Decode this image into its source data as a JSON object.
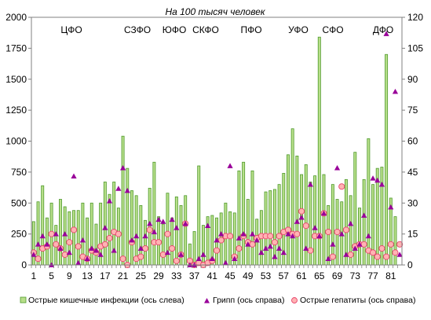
{
  "chart_data": {
    "type": "bar",
    "title": "На 100 тысяч человек",
    "x": [
      1,
      2,
      3,
      4,
      5,
      6,
      7,
      8,
      9,
      10,
      11,
      12,
      13,
      14,
      15,
      16,
      17,
      18,
      19,
      20,
      21,
      22,
      23,
      24,
      25,
      26,
      27,
      28,
      29,
      30,
      31,
      32,
      33,
      34,
      35,
      36,
      37,
      38,
      39,
      40,
      41,
      42,
      43,
      44,
      45,
      46,
      47,
      48,
      49,
      50,
      51,
      52,
      53,
      54,
      55,
      56,
      57,
      58,
      59,
      60,
      61,
      62,
      63,
      64,
      65,
      66,
      67,
      68,
      69,
      70,
      71,
      72,
      73,
      74,
      75,
      76,
      77,
      78,
      79,
      80,
      81,
      82,
      83
    ],
    "x_tick_labels": [
      "1",
      "5",
      "9",
      "13",
      "17",
      "21",
      "25",
      "29",
      "33",
      "37",
      "41",
      "45",
      "49",
      "53",
      "57",
      "61",
      "65",
      "69",
      "73",
      "77",
      "81"
    ],
    "region_labels": [
      "ЦФО",
      "СЗФО",
      "ЮФО",
      "СКФО",
      "ПФО",
      "УФО",
      "СФО",
      "ДФО"
    ],
    "y_left": {
      "lim": [
        0,
        2000
      ],
      "ticks": [
        "0",
        "250",
        "500",
        "750",
        "1000",
        "1250",
        "1500",
        "1750",
        "2000"
      ]
    },
    "y_right": {
      "lim": [
        0,
        120
      ],
      "ticks": [
        "0",
        "15",
        "30",
        "45",
        "60",
        "75",
        "90",
        "105",
        "120"
      ]
    },
    "grid": false,
    "legend_position": "bottom",
    "series": [
      {
        "name": "Острые кишечные инфекции (ось слева)",
        "kind": "bar",
        "axis": "left",
        "color": "#b8df8a",
        "edge": "#4f9a2c",
        "values": [
          350,
          510,
          640,
          380,
          500,
          320,
          530,
          470,
          430,
          440,
          440,
          500,
          380,
          500,
          330,
          500,
          670,
          570,
          670,
          460,
          1040,
          780,
          600,
          560,
          480,
          360,
          620,
          830,
          390,
          330,
          580,
          380,
          550,
          480,
          560,
          170,
          270,
          800,
          320,
          390,
          400,
          380,
          420,
          500,
          430,
          420,
          760,
          830,
          530,
          760,
          370,
          440,
          590,
          600,
          610,
          650,
          740,
          890,
          1100,
          880,
          730,
          810,
          670,
          720,
          1840,
          730,
          480,
          650,
          530,
          510,
          690,
          560,
          910,
          460,
          690,
          1020,
          650,
          780,
          790,
          1700,
          540,
          390,
          0
        ]
      },
      {
        "name": "Грипп (ось справа)",
        "kind": "marker",
        "shape": "triangle",
        "axis": "right",
        "color": "#990099",
        "values": [
          5,
          10,
          14,
          10,
          0,
          15,
          8,
          15,
          6,
          43,
          1,
          12,
          3,
          8,
          7,
          5,
          18,
          31,
          7,
          37,
          47,
          36,
          12,
          14,
          8,
          14,
          20,
          16,
          22,
          21,
          6,
          22,
          18,
          5,
          20,
          0,
          0,
          3,
          5,
          19,
          3,
          12,
          15,
          1,
          48,
          3,
          13,
          15,
          10,
          15,
          12,
          6,
          8,
          9,
          4,
          8,
          6,
          15,
          14,
          21,
          23,
          8,
          39,
          18,
          14,
          25,
          3,
          10,
          47,
          15,
          5,
          20,
          8,
          10,
          24,
          14,
          42,
          41,
          39,
          112,
          28,
          84,
          5
        ]
      },
      {
        "name": "Острые гепатиты (ось справа)",
        "kind": "marker",
        "shape": "circle",
        "axis": "right",
        "color": "#ffb3b3",
        "edge": "#e8436c",
        "values": [
          6,
          3,
          8,
          9,
          15,
          10,
          8,
          5,
          11,
          17,
          9,
          4,
          3,
          7,
          6,
          9,
          10,
          13,
          16,
          15,
          3,
          0,
          11,
          3,
          4,
          8,
          17,
          11,
          11,
          5,
          15,
          8,
          2,
          5,
          20,
          2,
          0,
          1,
          0,
          1,
          2,
          7,
          12,
          14,
          14,
          4,
          8,
          14,
          11,
          10,
          13,
          14,
          14,
          14,
          11,
          14,
          16,
          17,
          15,
          15,
          26,
          19,
          7,
          14,
          14,
          25,
          16,
          4,
          16,
          38,
          17,
          5,
          9,
          10,
          10,
          7,
          6,
          4,
          8,
          4,
          10,
          6,
          10
        ]
      }
    ]
  }
}
